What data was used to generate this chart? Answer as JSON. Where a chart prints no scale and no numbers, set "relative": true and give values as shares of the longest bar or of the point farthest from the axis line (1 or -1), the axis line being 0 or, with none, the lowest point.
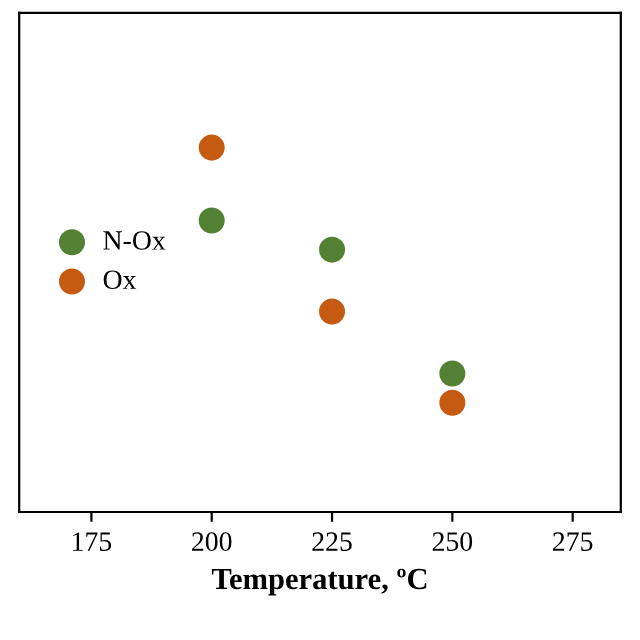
{
  "chart_data": {
    "type": "scatter",
    "xlabel": "Temperature, ºC",
    "relative": true,
    "x": [
      200,
      225,
      250
    ],
    "xlim": [
      160,
      285
    ],
    "xticks": [
      175,
      200,
      225,
      250,
      275
    ],
    "series": [
      {
        "name": "N-Ox",
        "color": "#548235",
        "values": [
          0.8,
          0.72,
          0.38
        ]
      },
      {
        "name": "Ox",
        "color": "#c55a11",
        "values": [
          1.0,
          0.55,
          0.3
        ]
      }
    ],
    "marker": "circle",
    "legend": "center left",
    "grid": false,
    "tick_labels": "x"
  }
}
